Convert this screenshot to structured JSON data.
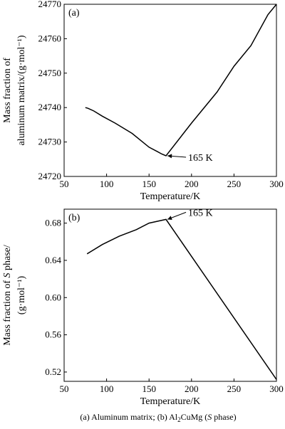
{
  "caption": {
    "prefix": "(a) Aluminum matrix;  (b) Al",
    "sub": "2",
    "middle": "CuMg (",
    "italic": "S",
    "suffix": " phase)"
  },
  "chart_data": [
    {
      "type": "line",
      "panel_label": "(a)",
      "xlabel": "Temperature/K",
      "ylabel_lines": [
        "Mass fraction of",
        "aluminum matrix/(g·mol⁻¹)"
      ],
      "xlim": [
        50,
        300
      ],
      "ylim": [
        24720,
        24770
      ],
      "xticks": [
        50,
        100,
        150,
        200,
        250,
        300
      ],
      "yticks": [
        24720,
        24730,
        24740,
        24750,
        24760,
        24770
      ],
      "grid": false,
      "x": [
        75,
        78,
        85,
        95,
        110,
        130,
        150,
        160,
        165,
        170,
        200,
        230,
        250,
        270,
        290,
        300
      ],
      "y": [
        24740,
        24739.8,
        24739,
        24737.5,
        24735.5,
        24732.5,
        24728.5,
        24727.2,
        24726.5,
        24726,
        24735.5,
        24744.5,
        24752,
        24758,
        24767,
        24770
      ],
      "annotation": {
        "text": "165 K",
        "x": 170,
        "y": 24726
      }
    },
    {
      "type": "line",
      "panel_label": "(b)",
      "xlabel": "Temperature/K",
      "ylabel_lines": [
        "Mass fraction of S phase/",
        "(g·mol⁻¹)"
      ],
      "xlim": [
        50,
        300
      ],
      "ylim": [
        0.51,
        0.695
      ],
      "xticks": [
        50,
        100,
        150,
        200,
        250,
        300
      ],
      "yticks": [
        0.52,
        0.56,
        0.6,
        0.64,
        0.68
      ],
      "ytick_labels": [
        "0.52",
        "0.56",
        "0.60",
        "0.64",
        "0.68"
      ],
      "grid": false,
      "x": [
        77,
        95,
        115,
        135,
        150,
        170,
        300
      ],
      "y": [
        0.647,
        0.657,
        0.666,
        0.673,
        0.68,
        0.684,
        0.512
      ],
      "annotation": {
        "text": "165 K",
        "x": 170,
        "y": 0.684
      }
    }
  ]
}
